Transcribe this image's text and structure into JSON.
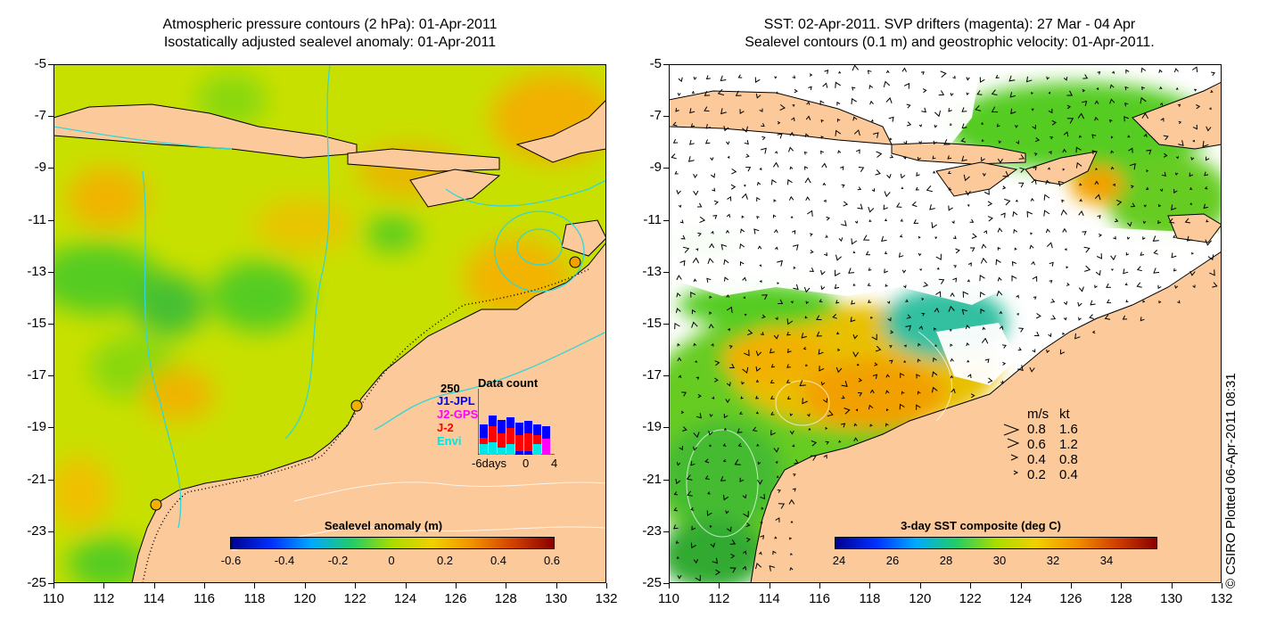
{
  "left_panel": {
    "title_line1": "Atmospheric pressure contours (2 hPa): 01-Apr-2011",
    "title_line2": "Isostatically adjusted sealevel anomaly: 01-Apr-2011",
    "colorbar_title": "Sealevel anomaly (m)",
    "colorbar_ticks": [
      "-0.6",
      "-0.4",
      "-0.2",
      "0",
      "0.2",
      "0.4",
      "0.6"
    ],
    "data_count": {
      "title": "Data count",
      "max_label": "250",
      "series": [
        {
          "name": "J1-JPL",
          "color": "#0000ff"
        },
        {
          "name": "J2-GPS",
          "color": "#ff00ff"
        },
        {
          "name": "J-2",
          "color": "#ff0000"
        },
        {
          "name": "Envi",
          "color": "#00e5e5"
        }
      ],
      "x_ticks": [
        "-6days",
        "0",
        "4"
      ]
    }
  },
  "right_panel": {
    "title_line1": "SST: 02-Apr-2011. SVP drifters (magenta): 27 Mar - 04 Apr",
    "title_line2": "Sealevel contours (0.1 m) and geostrophic velocity: 01-Apr-2011.",
    "colorbar_title": "3-day SST composite (deg C)",
    "colorbar_ticks": [
      "24",
      "26",
      "28",
      "30",
      "32",
      "34"
    ],
    "velocity_legend": {
      "header_ms": "m/s",
      "header_kt": "kt",
      "rows": [
        {
          "ms": "0.8",
          "kt": "1.6"
        },
        {
          "ms": "0.6",
          "kt": "1.2"
        },
        {
          "ms": "0.4",
          "kt": "0.8"
        },
        {
          "ms": "0.2",
          "kt": "0.4"
        }
      ]
    }
  },
  "y_axis_labels": [
    "-5",
    "-7",
    "-9",
    "-11",
    "-13",
    "-15",
    "-17",
    "-19",
    "-21",
    "-23",
    "-25"
  ],
  "x_axis_labels": [
    "110",
    "112",
    "114",
    "116",
    "118",
    "120",
    "122",
    "124",
    "126",
    "128",
    "130",
    "132"
  ],
  "credit": "© CSIRO Plotted 06-Apr-2011 08:31",
  "colors": {
    "land": "#fbc99a",
    "ocean_yellow": "#c8e000",
    "ocean_green": "#55cc22",
    "ocean_orange": "#f2b800",
    "contour_cyan": "#33d6d6",
    "cloud_white": "#ffffff"
  }
}
